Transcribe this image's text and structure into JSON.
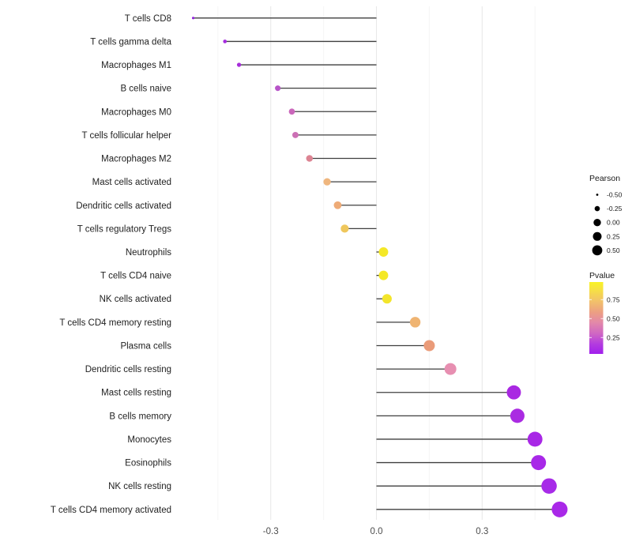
{
  "chart_data": {
    "type": "scatter",
    "variant": "lollipop",
    "orientation": "horizontal",
    "background": "#ffffff",
    "title": "",
    "xlabel": "",
    "ylabel": "",
    "categories": [
      "T cells CD8",
      "T cells gamma delta",
      "Macrophages M1",
      "B cells naive",
      "Macrophages M0",
      "T cells follicular helper",
      "Macrophages M2",
      "Mast cells activated",
      "Dendritic cells activated",
      "T cells regulatory  Tregs",
      "Neutrophils",
      "T cells CD4 naive",
      "NK cells activated",
      "T cells CD4 memory resting",
      "Plasma cells",
      "Dendritic cells resting",
      "Mast cells resting",
      "B cells memory",
      "Monocytes",
      "Eosinophils",
      "NK cells resting",
      "T cells CD4 memory activated"
    ],
    "series": [
      {
        "name": "Pearson correlation",
        "values": [
          -0.52,
          -0.43,
          -0.39,
          -0.28,
          -0.24,
          -0.23,
          -0.19,
          -0.14,
          -0.11,
          -0.09,
          0.02,
          0.02,
          0.03,
          0.11,
          0.15,
          0.21,
          0.39,
          0.4,
          0.45,
          0.46,
          0.49,
          0.52
        ]
      }
    ],
    "point_colors": [
      "#9122DC",
      "#A52BDF",
      "#A72DDA",
      "#B754C8",
      "#CA67BB",
      "#CC70B5",
      "#DC8493",
      "#EFB67E",
      "#EEAB77",
      "#EFC75C",
      "#F4E827",
      "#F4E827",
      "#F3E52B",
      "#EFB472",
      "#EA9B79",
      "#E78FB1",
      "#A928E2",
      "#AA2BE2",
      "#A827E6",
      "#A828E8",
      "#A72BE8",
      "#A928E8"
    ],
    "pvalue_approx": [
      0.1,
      0.13,
      0.15,
      0.27,
      0.36,
      0.39,
      0.5,
      0.61,
      0.58,
      0.68,
      0.88,
      0.88,
      0.87,
      0.6,
      0.54,
      0.45,
      0.1,
      0.1,
      0.09,
      0.08,
      0.08,
      0.07
    ],
    "xlim": [
      -0.565,
      0.58
    ],
    "xticks": {
      "labels": [
        "-0.3",
        "0.0",
        "0.3"
      ],
      "values": [
        -0.3,
        0.0,
        0.3
      ]
    },
    "grid": {
      "major": [
        -0.3,
        0.0,
        0.3
      ],
      "minor": [
        -0.45,
        -0.15,
        0.15,
        0.45
      ],
      "major_color": "#e8e8e8",
      "minor_color": "#f4f4f4"
    },
    "stem_color": "#3f3f3f",
    "axis_text_color": "#4d4d4d",
    "category_text_color": "#222222",
    "legend_size": {
      "title": "Pearson",
      "labels": [
        "-0.50",
        "-0.25",
        "0.00",
        "0.25",
        "0.50"
      ],
      "values": [
        -0.5,
        -0.25,
        0.0,
        0.25,
        0.5
      ],
      "dot_color": "#000000",
      "position": "right"
    },
    "legend_color": {
      "title": "Pvalue",
      "labels": [
        "0.75",
        "0.50",
        "0.25"
      ],
      "values": [
        0.75,
        0.5,
        0.25
      ],
      "gradient_top_to_bottom": [
        {
          "offset": 0.0,
          "color": "#F8F324"
        },
        {
          "offset": 0.12,
          "color": "#F6DE47"
        },
        {
          "offset": 0.26,
          "color": "#F2C369"
        },
        {
          "offset": 0.42,
          "color": "#EC9F82"
        },
        {
          "offset": 0.56,
          "color": "#E389A8"
        },
        {
          "offset": 0.72,
          "color": "#CF66C4"
        },
        {
          "offset": 0.86,
          "color": "#B33CDF"
        },
        {
          "offset": 1.0,
          "color": "#A11FEC"
        }
      ],
      "position": "right"
    }
  }
}
